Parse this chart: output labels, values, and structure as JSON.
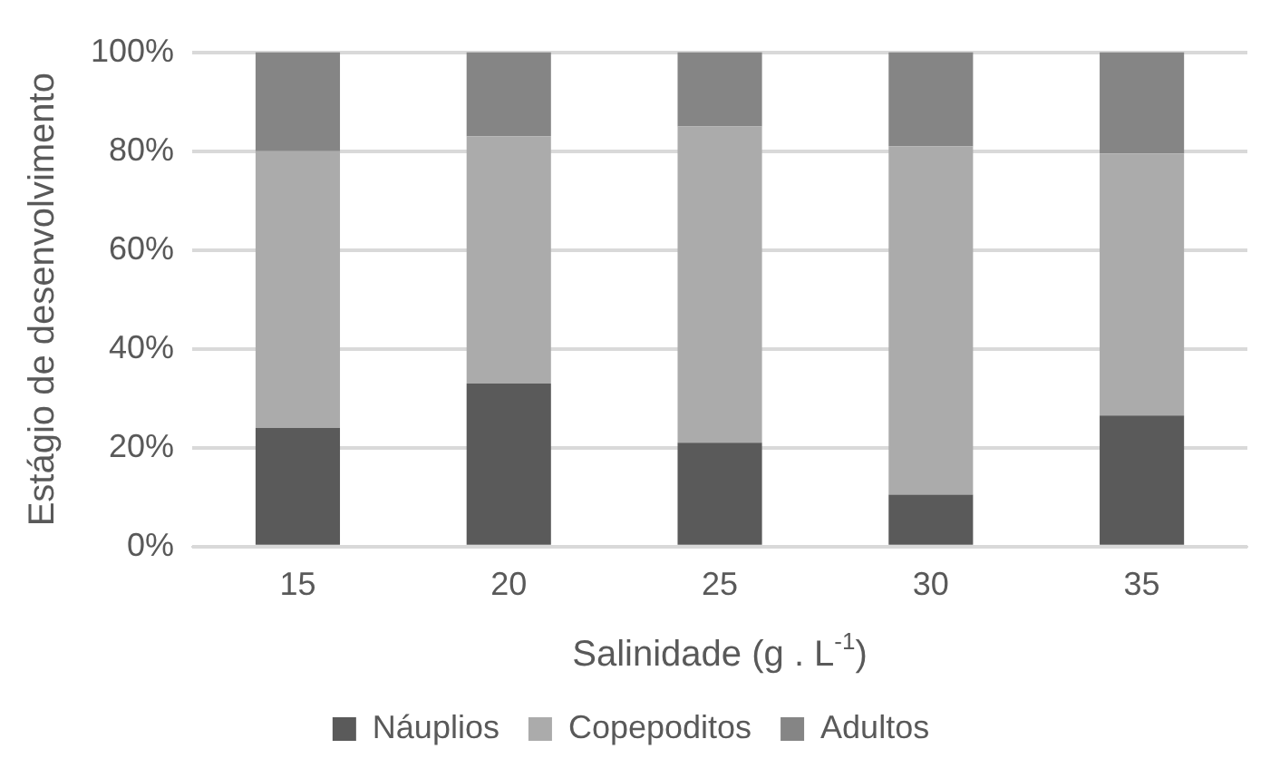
{
  "chart_data": {
    "type": "bar",
    "stacked": true,
    "xlabel": "Salinidade (g . L$^{-1}$)",
    "ylabel": "Estágio de desenvolvimento",
    "categories": [
      "15",
      "20",
      "25",
      "30",
      "35"
    ],
    "series": [
      {
        "name": "Náuplios",
        "color": "#5a5a5a",
        "values": [
          24,
          33,
          21,
          10.5,
          26.5
        ]
      },
      {
        "name": "Copepoditos",
        "color": "#ababab",
        "values": [
          56,
          50,
          64,
          70.5,
          53
        ]
      },
      {
        "name": "Adultos",
        "color": "#858585",
        "values": [
          20,
          17,
          15,
          19,
          20.5
        ]
      }
    ],
    "ylim": [
      0,
      100
    ],
    "yticks": [
      {
        "value": 0,
        "label": "0%"
      },
      {
        "value": 20,
        "label": "20%"
      },
      {
        "value": 40,
        "label": "40%"
      },
      {
        "value": 60,
        "label": "60%"
      },
      {
        "value": 80,
        "label": "80%"
      },
      {
        "value": 100,
        "label": "100%"
      }
    ],
    "grid": "y",
    "legend": "bottom"
  }
}
